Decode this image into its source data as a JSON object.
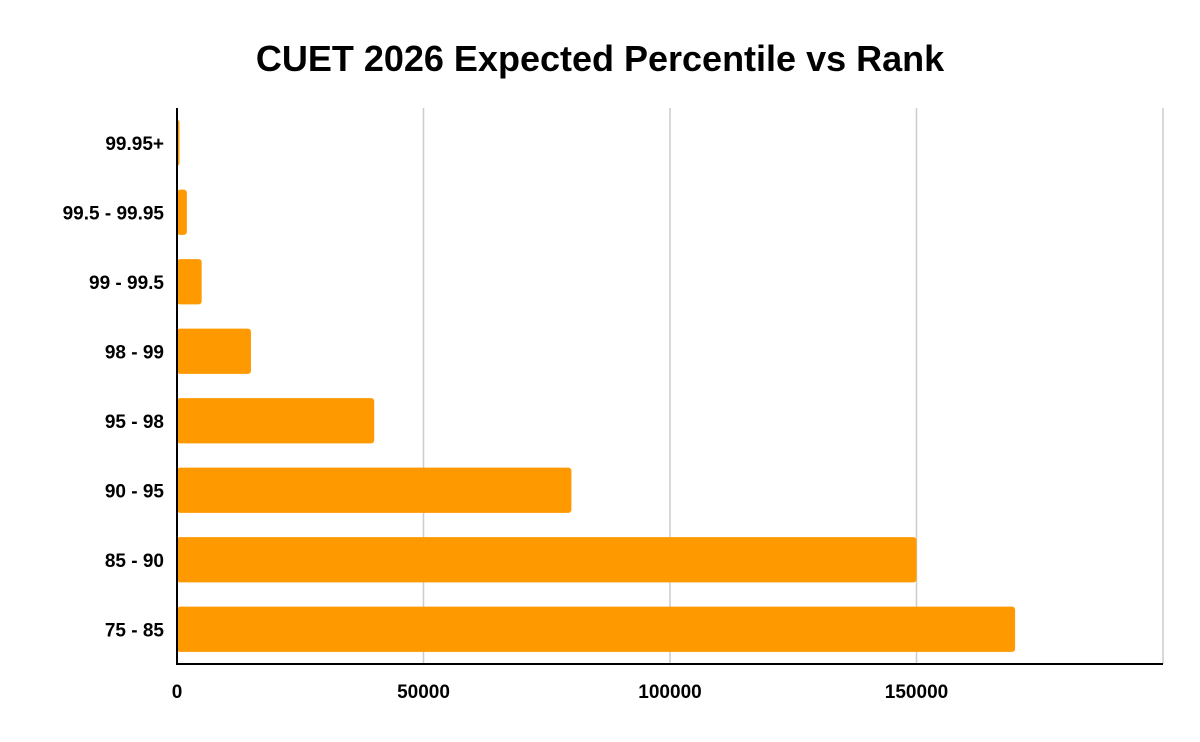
{
  "chart_data": {
    "type": "bar",
    "orientation": "horizontal",
    "title": "CUET 2026 Expected Percentile vs Rank",
    "xlabel": "",
    "ylabel": "",
    "categories": [
      "99.95+",
      "99.5 - 99.95",
      "99 - 99.5",
      "98 - 99",
      "95 - 98",
      "90 - 95",
      "85 - 90",
      "75 - 85"
    ],
    "values": [
      500,
      2000,
      5000,
      15000,
      40000,
      80000,
      150000,
      170000
    ],
    "xlim": [
      0,
      200000
    ],
    "xticks": [
      0,
      50000,
      100000,
      150000
    ],
    "grid": true,
    "legend": "none",
    "colors": {
      "bar": "#FF9900",
      "grid": "#CCCCCC",
      "axis": "#000000"
    }
  }
}
